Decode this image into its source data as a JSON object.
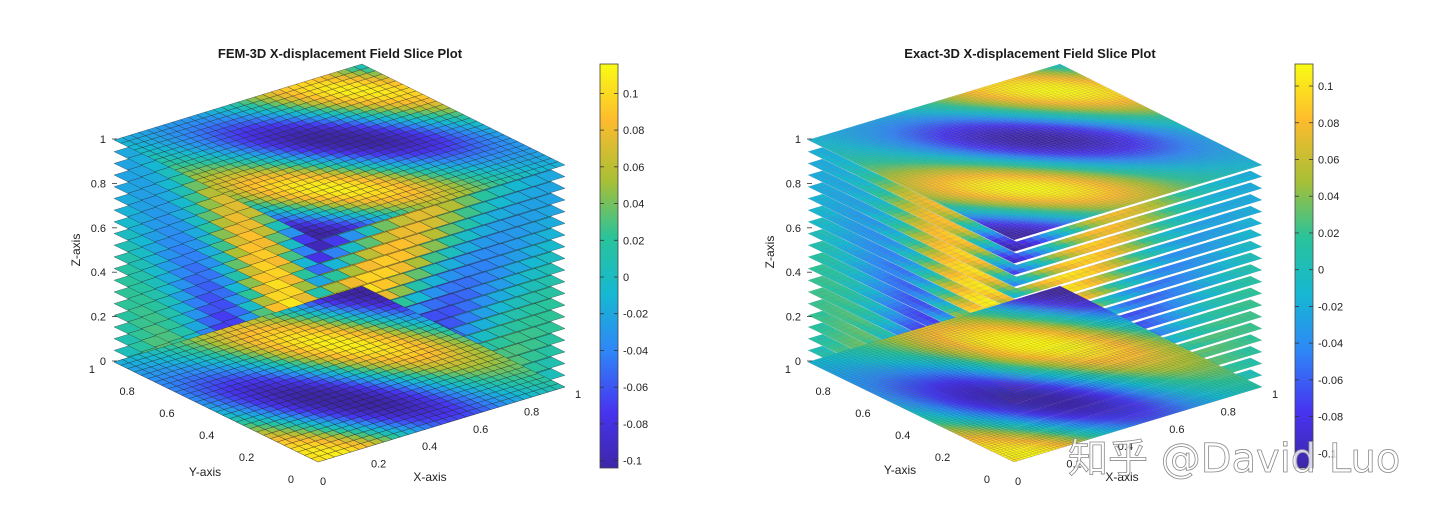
{
  "watermark": "知乎 @David Luo",
  "colormap": [
    "#3e26a8",
    "#4734f0",
    "#2e87f7",
    "#16b8d2",
    "#29c39b",
    "#a7bf36",
    "#fdbb2d",
    "#f9fb15"
  ],
  "chart_data": [
    {
      "type": "slice",
      "title": "FEM-3D X-displacement Field Slice Plot",
      "xlabel": "X-axis",
      "ylabel": "Y-axis",
      "zlabel": "Z-axis",
      "xticks": [
        "0",
        "0.2",
        "0.4",
        "0.6",
        "0.8",
        "1"
      ],
      "yticks": [
        "0",
        "0.2",
        "0.4",
        "0.6",
        "0.8",
        "1"
      ],
      "zticks": [
        "0",
        "0.2",
        "0.4",
        "0.6",
        "0.8",
        "1"
      ],
      "colorbar_ticks": [
        "0.1",
        "0.08",
        "0.06",
        "0.04",
        "0.02",
        "0",
        "-0.02",
        "-0.04",
        "-0.06",
        "-0.08",
        "-0.1"
      ],
      "colorbar_values": [
        0.1,
        0.08,
        0.06,
        0.04,
        0.02,
        0,
        -0.02,
        -0.04,
        -0.06,
        -0.08,
        -0.1
      ],
      "clim": [
        -0.104,
        0.116
      ],
      "xlim": [
        0,
        1
      ],
      "ylim": [
        0,
        1
      ],
      "zlim": [
        0,
        1
      ],
      "grid": "coarse",
      "edge_color": "#222222",
      "num_slices": 20
    },
    {
      "type": "slice",
      "title": "Exact-3D X-displacement Field Slice Plot",
      "xlabel": "X-axis",
      "ylabel": "Y-axis",
      "zlabel": "Z-axis",
      "xticks": [
        "0",
        "0.2",
        "0.4",
        "0.6",
        "0.8",
        "1"
      ],
      "yticks": [
        "0",
        "0.2",
        "0.4",
        "0.6",
        "0.8",
        "1"
      ],
      "zticks": [
        "0",
        "0.2",
        "0.4",
        "0.6",
        "0.8",
        "1"
      ],
      "colorbar_ticks": [
        "0.1",
        "0.08",
        "0.06",
        "0.04",
        "0.02",
        "0",
        "-0.02",
        "-0.04",
        "-0.06",
        "-0.08",
        "-0.1"
      ],
      "colorbar_values": [
        0.1,
        0.08,
        0.06,
        0.04,
        0.02,
        0,
        -0.02,
        -0.04,
        -0.06,
        -0.08,
        -0.1
      ],
      "clim": [
        -0.108,
        0.112
      ],
      "xlim": [
        0,
        1
      ],
      "ylim": [
        0,
        1
      ],
      "zlim": [
        0,
        1
      ],
      "grid": "fine",
      "edge_color": "#333333",
      "num_slices": 20
    }
  ]
}
